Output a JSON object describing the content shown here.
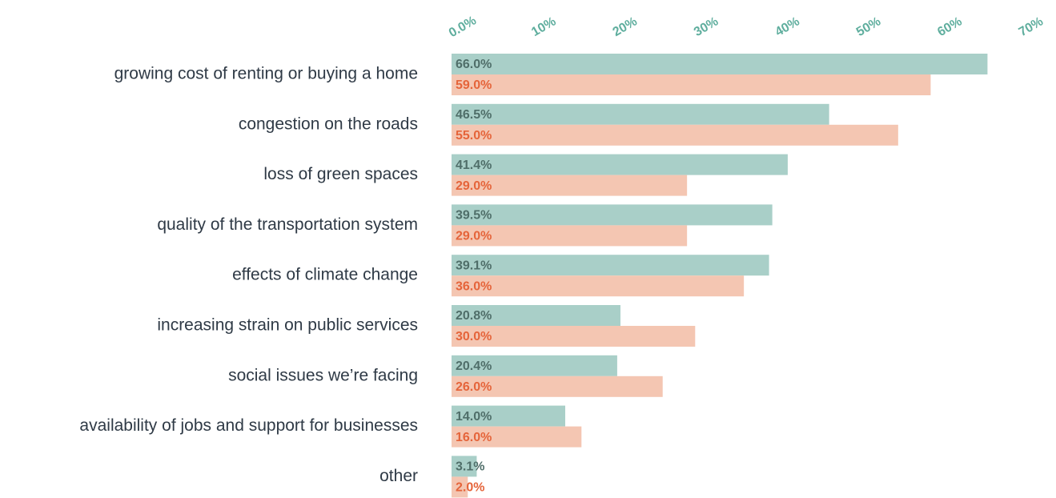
{
  "chart_data": {
    "type": "bar",
    "orientation": "horizontal",
    "categories": [
      "growing cost of renting or buying a home",
      "congestion on the roads",
      "loss of green spaces",
      "quality of the transportation system",
      "effects of climate change",
      "increasing strain on public services",
      "social issues we’re facing",
      "availability of jobs and support for businesses",
      "other"
    ],
    "series": [
      {
        "color": "#a9cfc8",
        "label_color": "#4f6e69",
        "values": [
          66.0,
          46.5,
          41.4,
          39.5,
          39.1,
          20.8,
          20.4,
          14.0,
          3.1
        ],
        "value_labels": [
          "66.0%",
          "46.5%",
          "41.4%",
          "39.5%",
          "39.1%",
          "20.8%",
          "20.4%",
          "14.0%",
          "3.1%"
        ]
      },
      {
        "color": "#f4c6b2",
        "label_color": "#e5643a",
        "values": [
          59.0,
          55.0,
          29.0,
          29.0,
          36.0,
          30.0,
          26.0,
          16.0,
          2.0
        ],
        "value_labels": [
          "59.0%",
          "55.0%",
          "29.0%",
          "29.0%",
          "36.0%",
          "30.0%",
          "26.0%",
          "16.0%",
          "2.0%"
        ]
      }
    ],
    "xlim": [
      0,
      70
    ],
    "xticks": [
      {
        "value": 0,
        "label": "0.0%"
      },
      {
        "value": 10,
        "label": "10%"
      },
      {
        "value": 20,
        "label": "20%"
      },
      {
        "value": 30,
        "label": "30%"
      },
      {
        "value": 40,
        "label": "40%"
      },
      {
        "value": 50,
        "label": "50%"
      },
      {
        "value": 60,
        "label": "60%"
      },
      {
        "value": 70,
        "label": "70%"
      }
    ],
    "grid": false
  }
}
